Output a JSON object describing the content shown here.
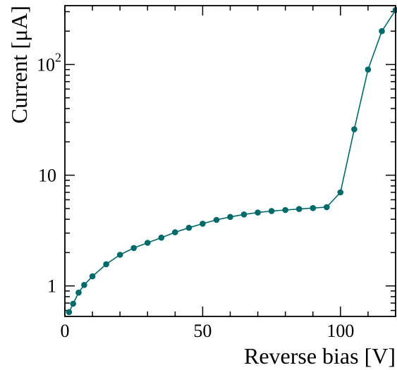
{
  "chart_data": {
    "type": "line",
    "title": "",
    "xlabel": "Reverse bias [V]",
    "ylabel": "Current [μA]",
    "xlim": [
      0,
      120
    ],
    "ylim": [
      0.53,
      340
    ],
    "y_scale": "log",
    "grid": false,
    "legend": "none",
    "x_ticks": [
      {
        "value": 0,
        "label": "0"
      },
      {
        "value": 50,
        "label": "50"
      },
      {
        "value": 100,
        "label": "100"
      }
    ],
    "y_ticks": [
      {
        "value": 1,
        "label": "1"
      },
      {
        "value": 10,
        "label": "10"
      },
      {
        "value": 100,
        "label": "10",
        "exponent": "2"
      }
    ],
    "series": [
      {
        "color": "#006a6a",
        "x": [
          1.5,
          3,
          5,
          7,
          10,
          15,
          20,
          25,
          30,
          35,
          40,
          45,
          50,
          55,
          60,
          65,
          70,
          75,
          80,
          85,
          90,
          95,
          100,
          105,
          110,
          115,
          120
        ],
        "y": [
          0.58,
          0.69,
          0.87,
          1.02,
          1.22,
          1.57,
          1.91,
          2.2,
          2.45,
          2.73,
          3.05,
          3.35,
          3.65,
          3.95,
          4.2,
          4.42,
          4.6,
          4.75,
          4.85,
          4.95,
          5.05,
          5.15,
          7.0,
          26.0,
          90.0,
          200.0,
          310.0
        ]
      }
    ]
  }
}
